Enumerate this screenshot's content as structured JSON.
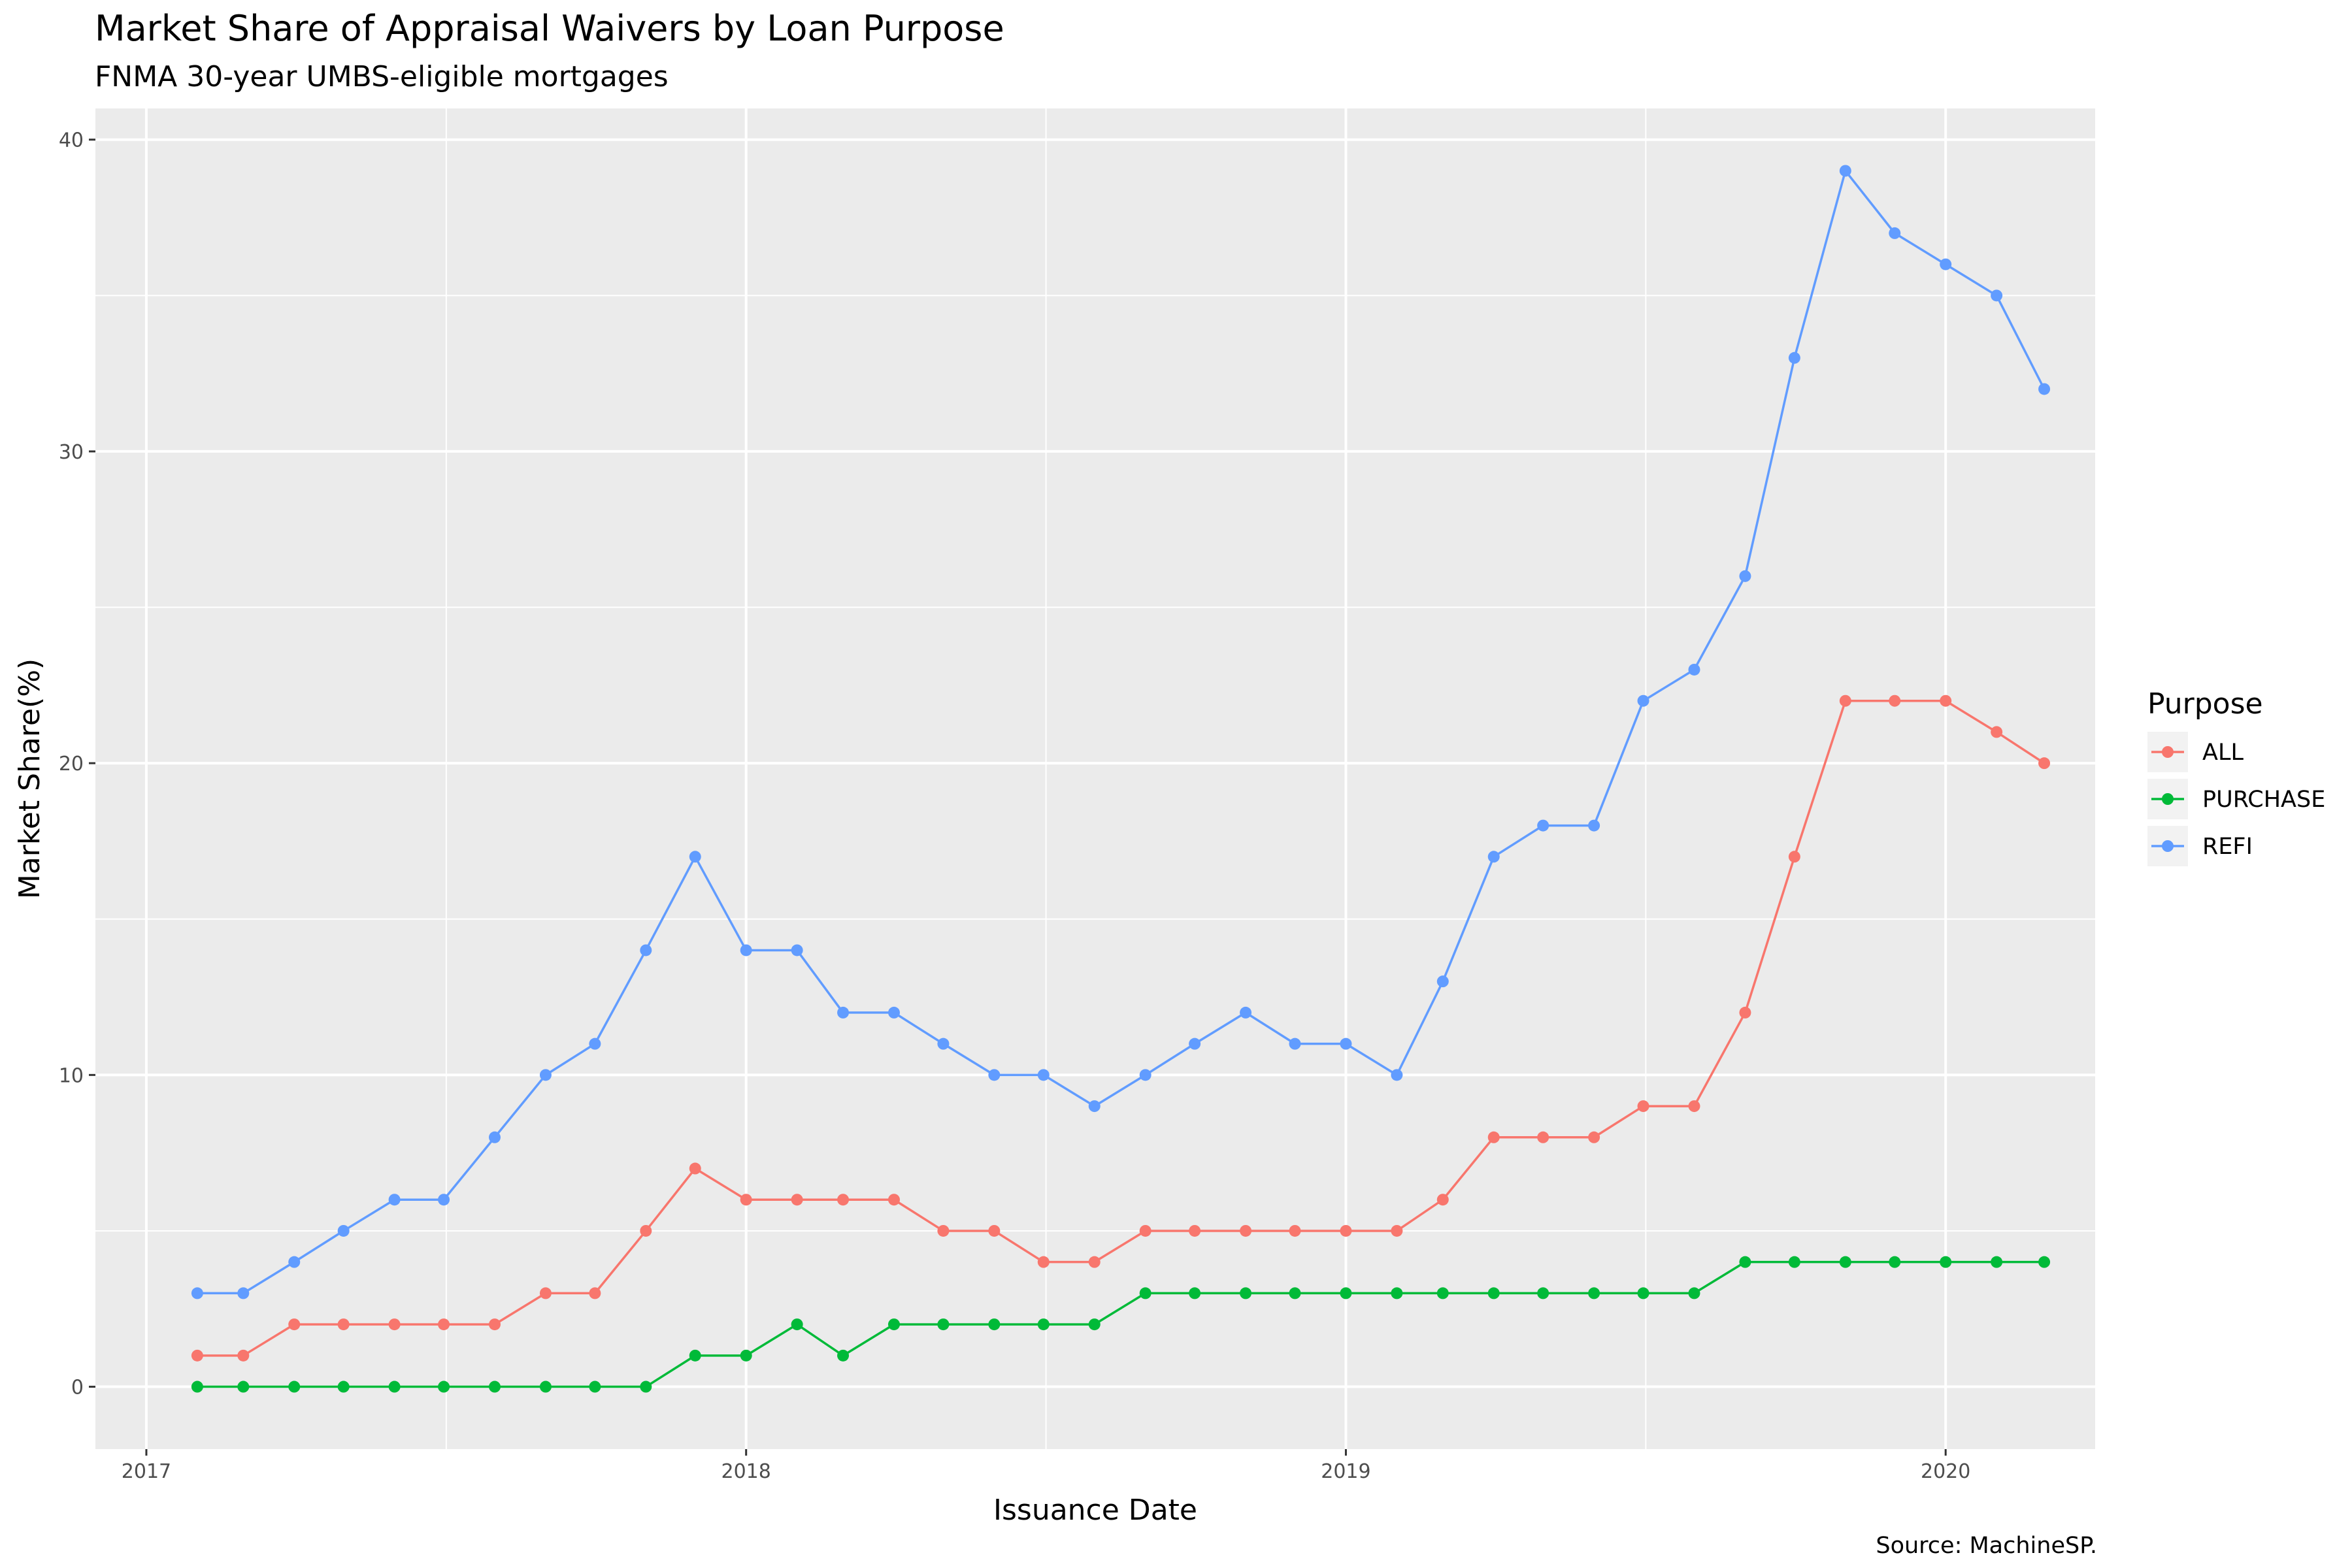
{
  "chart_data": {
    "type": "line",
    "title": "Market Share of Appraisal Waivers by Loan Purpose",
    "subtitle": "FNMA 30-year UMBS-eligible mortgages",
    "caption": "Source: MachineSP.",
    "xlabel": "Issuance Date",
    "ylabel": "Market Share(%)",
    "legend_title": "Purpose",
    "legend_position": "right",
    "grid": true,
    "x_tick_labels": [
      "2017",
      "2018",
      "2019",
      "2020"
    ],
    "y_ticks": [
      0,
      10,
      20,
      30,
      40
    ],
    "xlim": [
      "2016-12-01",
      "2020-04-01"
    ],
    "ylim": [
      -2,
      41
    ],
    "x": [
      "2017-02",
      "2017-03",
      "2017-04",
      "2017-05",
      "2017-06",
      "2017-07",
      "2017-08",
      "2017-09",
      "2017-10",
      "2017-11",
      "2017-12",
      "2018-01",
      "2018-02",
      "2018-03",
      "2018-04",
      "2018-05",
      "2018-06",
      "2018-07",
      "2018-08",
      "2018-09",
      "2018-10",
      "2018-11",
      "2018-12",
      "2019-01",
      "2019-02",
      "2019-03",
      "2019-04",
      "2019-05",
      "2019-06",
      "2019-07",
      "2019-08",
      "2019-09",
      "2019-10",
      "2019-11",
      "2019-12",
      "2020-01",
      "2020-02",
      "2020-03"
    ],
    "series": [
      {
        "name": "ALL",
        "color": "#F8766D",
        "values": [
          1,
          1,
          2,
          2,
          2,
          2,
          2,
          3,
          3,
          5,
          7,
          6,
          6,
          6,
          6,
          5,
          5,
          4,
          4,
          5,
          5,
          5,
          5,
          5,
          5,
          6,
          8,
          8,
          8,
          9,
          9,
          12,
          17,
          22,
          22,
          22,
          21,
          20
        ]
      },
      {
        "name": "PURCHASE",
        "color": "#00BA38",
        "values": [
          0,
          0,
          0,
          0,
          0,
          0,
          0,
          0,
          0,
          0,
          1,
          1,
          2,
          1,
          2,
          2,
          2,
          2,
          2,
          3,
          3,
          3,
          3,
          3,
          3,
          3,
          3,
          3,
          3,
          3,
          3,
          4,
          4,
          4,
          4,
          4,
          4,
          4
        ]
      },
      {
        "name": "REFI",
        "color": "#619CFF",
        "values": [
          3,
          3,
          4,
          5,
          6,
          6,
          8,
          10,
          11,
          14,
          17,
          14,
          14,
          12,
          12,
          11,
          10,
          10,
          9,
          10,
          11,
          12,
          11,
          11,
          10,
          13,
          17,
          18,
          18,
          22,
          23,
          26,
          33,
          39,
          37,
          36,
          35,
          32
        ]
      }
    ]
  }
}
